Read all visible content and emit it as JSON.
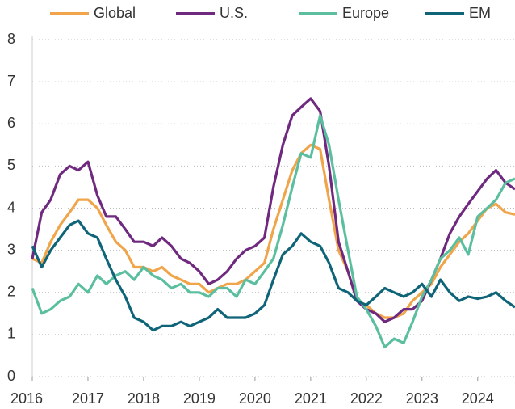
{
  "chart_data": {
    "type": "line",
    "x": [
      2016,
      2016.17,
      2016.33,
      2016.5,
      2016.67,
      2016.83,
      2017,
      2017.17,
      2017.33,
      2017.5,
      2017.67,
      2017.83,
      2018,
      2018.17,
      2018.33,
      2018.5,
      2018.67,
      2018.83,
      2019,
      2019.17,
      2019.33,
      2019.5,
      2019.67,
      2019.83,
      2020,
      2020.17,
      2020.33,
      2020.5,
      2020.67,
      2020.83,
      2021,
      2021.17,
      2021.33,
      2021.5,
      2021.67,
      2021.83,
      2022,
      2022.17,
      2022.33,
      2022.5,
      2022.67,
      2022.83,
      2023,
      2023.17,
      2023.33,
      2023.5,
      2023.67,
      2023.83,
      2024,
      2024.17,
      2024.33,
      2024.5,
      2024.67
    ],
    "series": [
      {
        "name": "Global",
        "color": "#f0a54a",
        "values": [
          2.8,
          2.7,
          3.2,
          3.6,
          3.9,
          4.2,
          4.2,
          4.0,
          3.6,
          3.2,
          3.0,
          2.6,
          2.6,
          2.5,
          2.6,
          2.4,
          2.3,
          2.2,
          2.2,
          2.0,
          2.1,
          2.2,
          2.2,
          2.3,
          2.5,
          2.7,
          3.5,
          4.2,
          4.9,
          5.3,
          5.5,
          5.4,
          4.2,
          3.0,
          2.5,
          1.8,
          1.7,
          1.5,
          1.4,
          1.4,
          1.5,
          1.8,
          2.0,
          2.2,
          2.6,
          2.9,
          3.2,
          3.4,
          3.7,
          4.0,
          4.1,
          3.9,
          3.85
        ]
      },
      {
        "name": "U.S.",
        "color": "#6f2a80",
        "values": [
          2.8,
          3.9,
          4.2,
          4.8,
          5.0,
          4.9,
          5.1,
          4.3,
          3.8,
          3.8,
          3.5,
          3.2,
          3.2,
          3.1,
          3.3,
          3.1,
          2.8,
          2.7,
          2.5,
          2.2,
          2.3,
          2.5,
          2.8,
          3.0,
          3.1,
          3.3,
          4.5,
          5.5,
          6.2,
          6.4,
          6.6,
          6.3,
          5.0,
          3.2,
          2.5,
          1.8,
          1.6,
          1.5,
          1.3,
          1.4,
          1.6,
          1.6,
          1.8,
          2.3,
          2.8,
          3.4,
          3.8,
          4.1,
          4.4,
          4.7,
          4.9,
          4.6,
          4.45
        ]
      },
      {
        "name": "Europe",
        "color": "#5bbf9f",
        "values": [
          2.1,
          1.5,
          1.6,
          1.8,
          1.9,
          2.2,
          2.0,
          2.4,
          2.2,
          2.4,
          2.5,
          2.3,
          2.6,
          2.4,
          2.3,
          2.1,
          2.2,
          2.0,
          2.0,
          1.9,
          2.1,
          2.1,
          1.9,
          2.3,
          2.2,
          2.5,
          2.8,
          3.6,
          4.5,
          5.3,
          5.2,
          6.2,
          5.5,
          4.2,
          3.0,
          1.9,
          1.6,
          1.2,
          0.7,
          0.9,
          0.8,
          1.3,
          1.9,
          2.3,
          2.8,
          3.0,
          3.3,
          2.9,
          3.8,
          4.0,
          4.2,
          4.6,
          4.7
        ]
      },
      {
        "name": "EM",
        "color": "#0f6478",
        "values": [
          3.1,
          2.6,
          3.0,
          3.3,
          3.6,
          3.7,
          3.4,
          3.3,
          2.8,
          2.3,
          1.9,
          1.4,
          1.3,
          1.1,
          1.2,
          1.2,
          1.3,
          1.2,
          1.3,
          1.4,
          1.6,
          1.4,
          1.4,
          1.4,
          1.5,
          1.7,
          2.3,
          2.9,
          3.1,
          3.4,
          3.2,
          3.1,
          2.7,
          2.1,
          2.0,
          1.8,
          1.7,
          1.9,
          2.1,
          2.0,
          1.9,
          2.0,
          2.2,
          1.9,
          2.3,
          2.0,
          1.8,
          1.9,
          1.85,
          1.9,
          2.0,
          1.8,
          1.65
        ]
      }
    ],
    "xlim": [
      2016,
      2024.67
    ],
    "xticks": [
      2016,
      2017,
      2018,
      2019,
      2020,
      2021,
      2022,
      2023,
      2024
    ],
    "ylim": [
      0,
      8
    ],
    "yticks": [
      0,
      1,
      2,
      3,
      4,
      5,
      6,
      7,
      8
    ],
    "grid": true
  }
}
